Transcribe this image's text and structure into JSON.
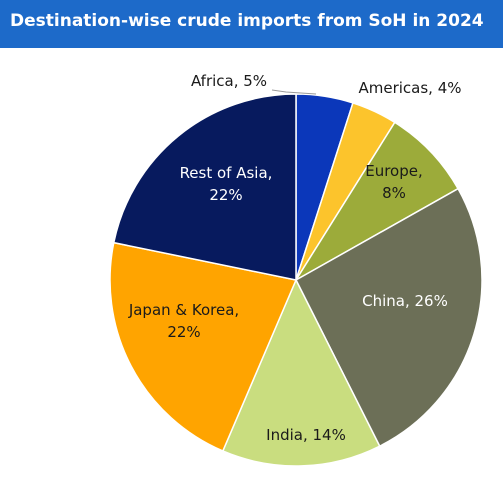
{
  "title": "Destination-wise crude imports from SoH in 2024",
  "colors": {
    "title_bg": "#1d6ac9",
    "title_text": "#ffffff"
  },
  "chart_data": {
    "type": "pie",
    "title": "Destination-wise crude imports from SoH in 2024",
    "start": "12 o'clock, clockwise",
    "legend": "none",
    "slices": [
      {
        "label": "Africa, 5%",
        "name": "Africa",
        "value": 5,
        "color": "#0b37ba",
        "label_color": "#1a1a1a"
      },
      {
        "label": "Americas, 4%",
        "name": "Americas",
        "value": 4,
        "color": "#fcc42c",
        "label_color": "#1a1a1a"
      },
      {
        "label": "Europe, 8%",
        "name": "Europe",
        "value": 8,
        "color": "#9cab3a",
        "label_color": "#1a1a1a"
      },
      {
        "label": "China, 26%",
        "name": "China",
        "value": 26,
        "color": "#6c6f57",
        "label_color": "#ffffff"
      },
      {
        "label": "India, 14%",
        "name": "India",
        "value": 14,
        "color": "#c9dd7f",
        "label_color": "#1a1a1a"
      },
      {
        "label": "Japan & Korea, 22%",
        "name": "Japan & Korea",
        "value": 22,
        "color": "#ffa400",
        "label_color": "#1a1a1a"
      },
      {
        "label": "Rest of Asia, 22%",
        "name": "Rest of Asia",
        "value": 22,
        "color": "#071a5e",
        "label_color": "#ffffff"
      }
    ]
  }
}
